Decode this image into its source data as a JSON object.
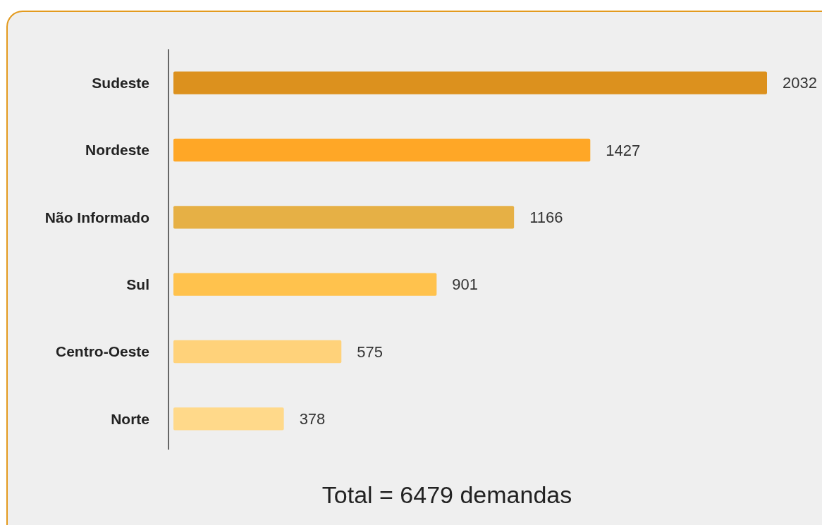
{
  "chart_data": {
    "type": "bar",
    "orientation": "horizontal",
    "categories": [
      "Sudeste",
      "Nordeste",
      "Não Informado",
      "Sul",
      "Centro-Oeste",
      "Norte"
    ],
    "values": [
      2032,
      1427,
      1166,
      901,
      575,
      378
    ],
    "colors": [
      "#dc911e",
      "#ffa726",
      "#e6b045",
      "#ffc24d",
      "#ffd27a",
      "#ffd98a"
    ],
    "data_labels": true,
    "annotations": [
      "Total = 6479 demandas"
    ]
  }
}
